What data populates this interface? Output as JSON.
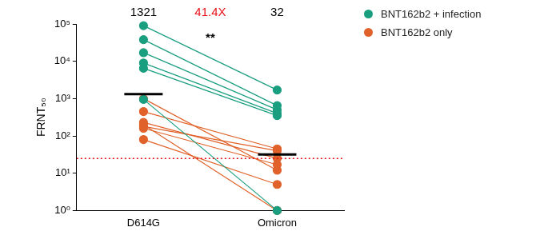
{
  "chart_data": {
    "type": "scatter",
    "categories": [
      "D614G",
      "Omicron"
    ],
    "series": [
      {
        "name": "BNT162b2 + infection",
        "color": "#1a9e80",
        "values": [
          [
            90000,
            1700
          ],
          [
            38000,
            650
          ],
          [
            17000,
            500
          ],
          [
            9000,
            400
          ],
          [
            6500,
            350
          ],
          [
            950,
            1
          ]
        ]
      },
      {
        "name": "BNT162b2 only",
        "color": "#e0622a",
        "values": [
          [
            1000,
            12
          ],
          [
            450,
            45
          ],
          [
            230,
            25
          ],
          [
            200,
            1
          ],
          [
            180,
            40
          ],
          [
            160,
            17
          ],
          [
            80,
            5
          ]
        ]
      }
    ],
    "geometric_means": [
      1321,
      32
    ],
    "fold_change": {
      "value": 41.4,
      "label": "41.4X",
      "color": "#e8131b"
    },
    "significance": "**",
    "threshold": {
      "value": 25,
      "color": "#e8131b",
      "line_style": "dotted"
    },
    "y_label": "FRNT₅₀",
    "log": "y",
    "ylim": [
      1,
      100000
    ],
    "yticks": [
      {
        "value": 1,
        "label": "10⁰"
      },
      {
        "value": 10,
        "label": "10¹"
      },
      {
        "value": 100,
        "label": "10²"
      },
      {
        "value": 1000,
        "label": "10³"
      },
      {
        "value": 10000,
        "label": "10⁴"
      },
      {
        "value": 100000,
        "label": "10⁵"
      }
    ],
    "grid": false,
    "legend": "right",
    "marker": "circle"
  }
}
